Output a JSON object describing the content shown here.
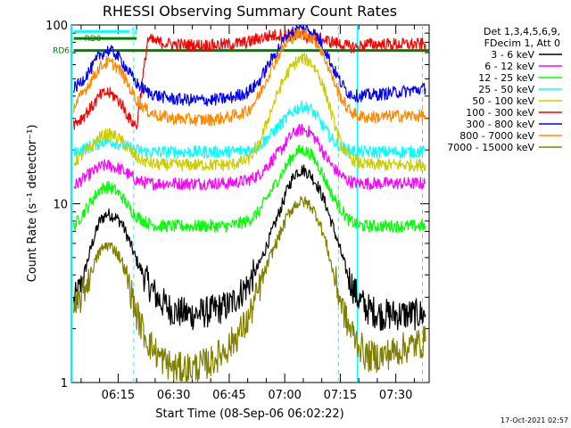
{
  "chart_data": {
    "type": "line",
    "title": "RHESSI Observing Summary Count Rates",
    "xlabel": "Start Time (08-Sep-06 06:02:22)",
    "ylabel": "Count Rate (s⁻¹ detector⁻¹)",
    "y_scale": "log",
    "ylim": [
      1,
      100
    ],
    "xlim_minutes_after_0600": [
      2.37,
      99.0
    ],
    "x_ticks": [
      {
        "minute": 15,
        "label": "06:15"
      },
      {
        "minute": 30,
        "label": "06:30"
      },
      {
        "minute": 45,
        "label": "06:45"
      },
      {
        "minute": 60,
        "label": "07:00"
      },
      {
        "minute": 75,
        "label": "07:15"
      },
      {
        "minute": 90,
        "label": "07:30"
      }
    ],
    "y_ticks": [
      {
        "value": 1,
        "label": "1"
      },
      {
        "value": 10,
        "label": "10"
      },
      {
        "value": 100,
        "label": "100"
      }
    ],
    "legend_position": "top-right",
    "legend_header": [
      "Det 1,3,4,5,6,9,",
      "FDecim 1, Att 0"
    ],
    "series": [
      {
        "name": "3 - 6 keV",
        "color": "#000000",
        "x": [
          3,
          5,
          8,
          10,
          12,
          14,
          16,
          18,
          20,
          23,
          26,
          30,
          35,
          40,
          45,
          50,
          53,
          56,
          59,
          61,
          63,
          65,
          67,
          69,
          71,
          73,
          75,
          77,
          79.6,
          82,
          86,
          90,
          94,
          98
        ],
        "y": [
          2.8,
          3.5,
          6.0,
          8.0,
          8.8,
          8.5,
          7.8,
          6.2,
          4.8,
          3.6,
          2.9,
          2.5,
          2.4,
          2.5,
          2.7,
          3.5,
          4.5,
          6.5,
          9.5,
          12.5,
          15.0,
          15.5,
          14.5,
          12.5,
          10.0,
          7.5,
          5.5,
          4.0,
          3.0,
          2.6,
          2.4,
          2.4,
          2.4,
          2.4
        ]
      },
      {
        "name": "6 - 12 keV",
        "color": "#ff00ff",
        "x": [
          3,
          5,
          8,
          10,
          12,
          14,
          16,
          18,
          20,
          23,
          26,
          30,
          35,
          40,
          45,
          50,
          53,
          56,
          59,
          61,
          63,
          65,
          67,
          69,
          71,
          73,
          75,
          77,
          79.6,
          82,
          86,
          90,
          94,
          98
        ],
        "y": [
          12.5,
          13.5,
          15.0,
          16.0,
          16.5,
          16.0,
          15.5,
          14.5,
          13.5,
          13.0,
          13.0,
          13.0,
          13.0,
          13.0,
          13.0,
          13.5,
          14.5,
          17.0,
          20.0,
          23.0,
          25.5,
          26.0,
          25.0,
          22.0,
          18.5,
          16.0,
          14.5,
          13.5,
          13.0,
          13.0,
          13.0,
          13.0,
          13.0,
          13.0
        ]
      },
      {
        "name": "12 - 25 keV",
        "color": "#00ff00",
        "x": [
          3,
          5,
          8,
          10,
          12,
          14,
          16,
          18,
          20,
          23,
          26,
          30,
          35,
          40,
          45,
          50,
          53,
          56,
          59,
          61,
          63,
          65,
          67,
          69,
          71,
          73,
          75,
          77,
          79.6,
          82,
          86,
          90,
          94,
          98
        ],
        "y": [
          7.5,
          8.5,
          10.5,
          12.0,
          12.5,
          12.0,
          11.0,
          9.5,
          8.5,
          7.8,
          7.5,
          7.5,
          7.5,
          7.5,
          7.5,
          8.0,
          9.0,
          11.5,
          14.5,
          17.0,
          19.5,
          20.0,
          19.0,
          16.5,
          13.5,
          11.0,
          9.5,
          8.2,
          7.6,
          7.5,
          7.5,
          7.5,
          7.5,
          7.5
        ]
      },
      {
        "name": "25 - 50 keV",
        "color": "#00ffff",
        "x": [
          3,
          5,
          8,
          10,
          12,
          14,
          16,
          18,
          20,
          23,
          26,
          30,
          35,
          40,
          45,
          50,
          53,
          56,
          59,
          61,
          63,
          65,
          67,
          69,
          71,
          73,
          75,
          77,
          79.6,
          82,
          86,
          90,
          94,
          98
        ],
        "y": [
          19.0,
          20.0,
          21.0,
          22.0,
          22.5,
          22.0,
          21.5,
          20.5,
          20.0,
          19.5,
          19.5,
          19.5,
          19.5,
          19.5,
          19.5,
          20.0,
          21.0,
          24.0,
          28.0,
          31.0,
          34.0,
          35.0,
          34.0,
          30.0,
          26.0,
          22.5,
          21.0,
          20.0,
          19.5,
          19.5,
          19.5,
          19.5,
          19.5,
          19.5
        ]
      },
      {
        "name": "50 - 100 keV",
        "color": "#cccc00",
        "x": [
          3,
          5,
          8,
          10,
          12,
          14,
          16,
          18,
          20,
          23,
          26,
          30,
          35,
          40,
          45,
          50,
          53,
          56,
          59,
          61,
          63,
          65,
          67,
          69,
          71,
          73,
          75,
          77,
          79.6,
          82,
          86,
          90,
          94,
          98
        ],
        "y": [
          17.0,
          18.5,
          21.0,
          23.5,
          24.5,
          24.0,
          22.5,
          20.0,
          18.0,
          17.0,
          16.5,
          16.5,
          16.5,
          16.5,
          16.5,
          17.5,
          21.0,
          32.0,
          46.0,
          55.0,
          62.0,
          65.0,
          62.0,
          54.0,
          42.0,
          30.0,
          22.0,
          18.5,
          17.0,
          16.5,
          16.5,
          16.5,
          16.5,
          16.5
        ]
      },
      {
        "name": "100 - 300 keV",
        "color": "#ff0000",
        "x": [
          3,
          5,
          8,
          10,
          12,
          14,
          16,
          18,
          20,
          23,
          26,
          30,
          35,
          40,
          45,
          50,
          53,
          56,
          59,
          61,
          63,
          65,
          67,
          69,
          71,
          73,
          75,
          77,
          79.6,
          82,
          86,
          90,
          94,
          98
        ],
        "y": [
          28.0,
          30.0,
          35.0,
          40.0,
          42.0,
          40.0,
          36.0,
          30.0,
          27.0,
          83.0,
          80.0,
          78.0,
          77.0,
          77.0,
          78.0,
          80.0,
          84.0,
          87.0,
          88.0,
          88.0,
          87.0,
          86.0,
          85.0,
          84.0,
          82.0,
          80.0,
          78.0,
          76.0,
          75.0,
          78.0,
          78.0,
          78.0,
          78.0,
          78.0
        ]
      },
      {
        "name": "300 - 800 keV",
        "color": "#0000ff",
        "x": [
          3,
          5,
          8,
          10,
          12,
          14,
          16,
          18,
          20,
          23,
          26,
          30,
          35,
          40,
          45,
          50,
          53,
          56,
          59,
          61,
          63,
          65,
          67,
          69,
          71,
          73,
          75,
          77,
          79.6,
          82,
          86,
          90,
          94,
          98
        ],
        "y": [
          44.0,
          48.0,
          58.0,
          68.0,
          72.0,
          70.0,
          63.0,
          54.0,
          47.0,
          42.0,
          40.0,
          38.5,
          38.0,
          38.0,
          39.0,
          42.0,
          48.0,
          62.0,
          78.0,
          88.0,
          94.0,
          96.0,
          93.0,
          85.0,
          72.0,
          58.0,
          48.0,
          42.0,
          40.0,
          40.5,
          41.0,
          42.0,
          43.0,
          44.0
        ]
      },
      {
        "name": "800 - 7000 keV",
        "color": "#ff8800",
        "x": [
          3,
          5,
          8,
          10,
          12,
          14,
          16,
          18,
          20,
          23,
          26,
          30,
          35,
          40,
          45,
          50,
          53,
          56,
          59,
          61,
          63,
          65,
          67,
          69,
          71,
          73,
          75,
          77,
          79.6,
          82,
          86,
          90,
          94,
          98
        ],
        "y": [
          35.0,
          40.0,
          50.0,
          58.0,
          62.0,
          60.0,
          54.0,
          45.0,
          38.0,
          33.0,
          31.0,
          30.0,
          29.5,
          29.5,
          30.5,
          33.0,
          40.0,
          55.0,
          72.0,
          82.0,
          88.0,
          90.0,
          86.0,
          78.0,
          64.0,
          50.0,
          40.0,
          34.0,
          31.0,
          30.5,
          30.5,
          31.0,
          31.0,
          31.0
        ]
      },
      {
        "name": "7000 - 15000 keV",
        "color": "#808000",
        "x": [
          3,
          5,
          8,
          10,
          12,
          14,
          16,
          18,
          20,
          23,
          26,
          30,
          35,
          40,
          45,
          50,
          53,
          56,
          59,
          61,
          63,
          65,
          67,
          69,
          71,
          73,
          75,
          77,
          79.6,
          82,
          86,
          90,
          94,
          98
        ],
        "y": [
          2.4,
          3.0,
          4.3,
          5.4,
          5.9,
          5.6,
          4.8,
          3.5,
          2.4,
          1.7,
          1.4,
          1.2,
          1.2,
          1.3,
          1.6,
          2.2,
          3.3,
          5.0,
          7.0,
          8.8,
          10.0,
          10.3,
          9.8,
          8.3,
          6.2,
          4.2,
          2.9,
          2.1,
          1.7,
          1.4,
          1.4,
          1.5,
          1.6,
          1.7
        ]
      }
    ],
    "annotations": [
      {
        "label": "RD0",
        "x_range": [
          3,
          20
        ],
        "y": 84,
        "color": "#008000"
      },
      {
        "label": "RD6",
        "x_range": [
          3,
          99
        ],
        "y": 72,
        "color": "#008000"
      },
      {
        "label": "N",
        "x_range": [
          3,
          18
        ],
        "y": 92,
        "color": "#00ffff"
      }
    ],
    "vertical_markers_solid": [
      2.5,
      79.6
    ],
    "vertical_markers_dashed": [
      19.2,
      74.5,
      97.2
    ]
  },
  "footer": {
    "timestamp": "17-Oct-2021 02:57"
  }
}
